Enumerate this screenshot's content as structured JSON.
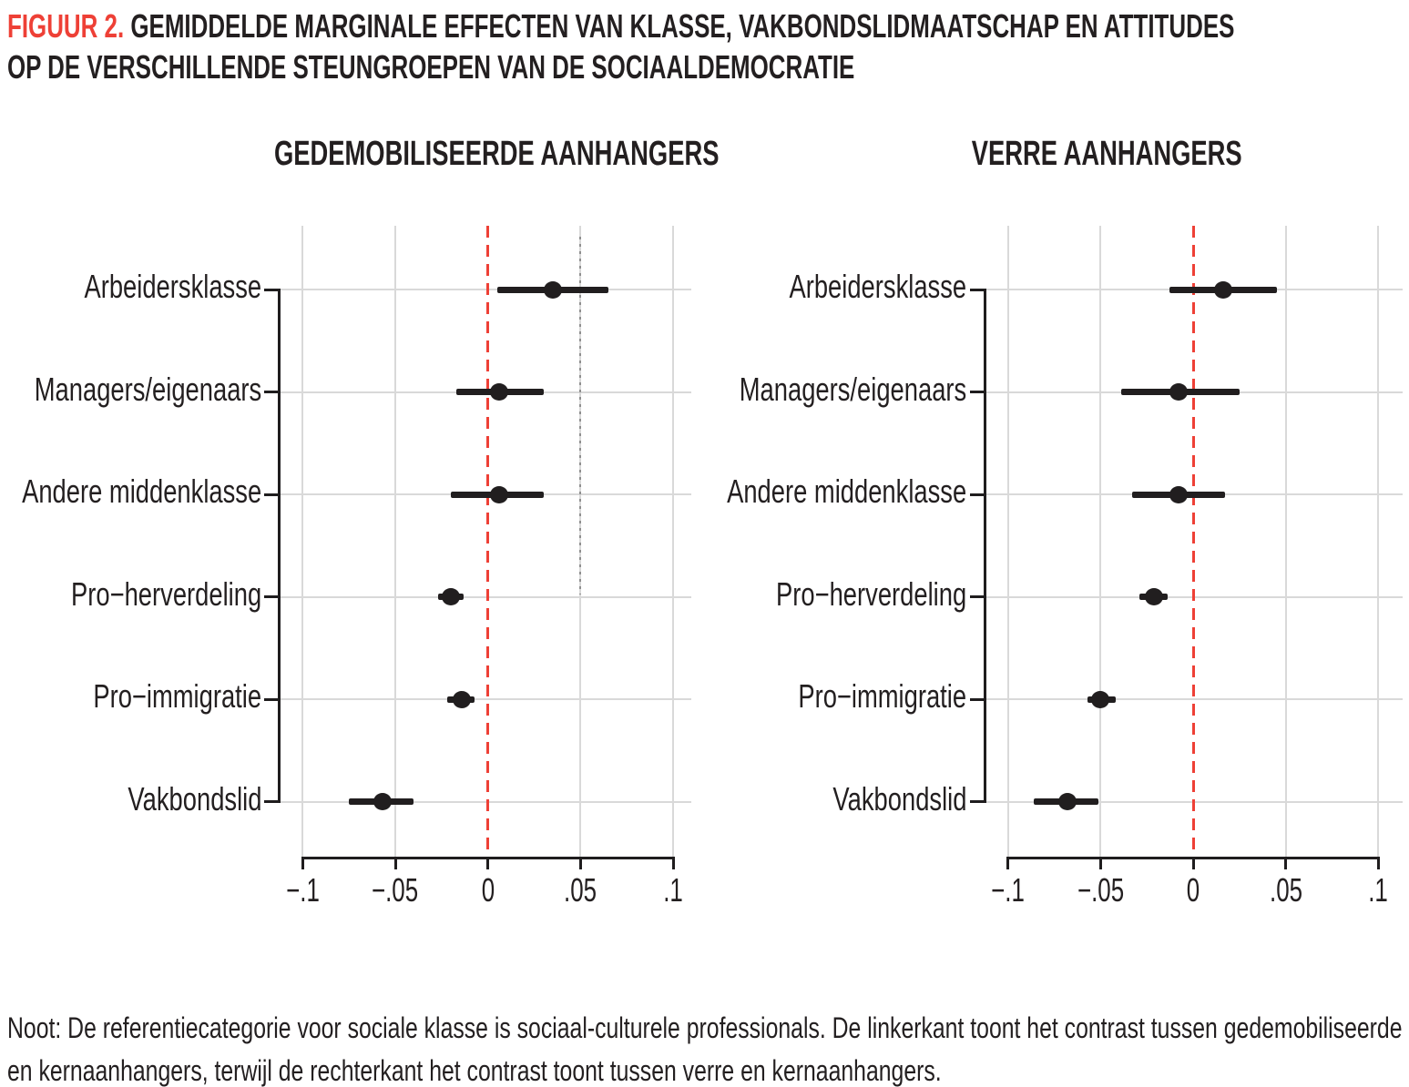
{
  "figure": {
    "label": "FIGUUR 2.",
    "title_line1": " GEMIDDELDE MARGINALE EFFECTEN VAN KLASSE, VAKBONDSLIDMAATSCHAP EN ATTITUDES",
    "title_line2": "OP DE VERSCHILLENDE STEUNGROEPEN VAN DE SOCIAALDEMOCRATIE",
    "label_color": "#ee4036"
  },
  "note": {
    "text": "Noot: De referentiecategorie voor sociale klasse is sociaal-culturele professionals. De linkerkant toont het contrast tussen gedemobiliseerde en kernaanhangers, terwijl de rechterkant het contrast toont tussen verre en kernaanhangers."
  },
  "chart_data": {
    "type": "scatter",
    "subtype": "coefficient-dot-whisker",
    "categories": [
      "Arbeidersklasse",
      "Managers/eigenaars",
      "Andere middenklasse",
      "Pro−herverdeling",
      "Pro−immigratie",
      "Vakbondslid"
    ],
    "x_ticks": [
      -0.1,
      -0.05,
      0,
      0.05,
      0.1
    ],
    "x_tick_labels": [
      "−.1",
      "−.05",
      "0",
      ".05",
      ".1"
    ],
    "xlim": [
      -0.1,
      0.1
    ],
    "grid": "on",
    "zero_line": {
      "x": 0,
      "style": "dashed",
      "color": "#ee4036"
    },
    "colors": {
      "marker": "#211e1f",
      "gridline": "#d9d9d9",
      "axis": "#1f1d1e",
      "dotted_reference": "#8f8f8f"
    },
    "panels": [
      {
        "title": "GEDEMOBILISEERDE AANHANGERS",
        "estimates": [
          0.035,
          0.006,
          0.006,
          -0.02,
          -0.014,
          -0.057
        ],
        "ci_low": [
          0.005,
          -0.017,
          -0.02,
          -0.027,
          -0.022,
          -0.075
        ],
        "ci_high": [
          0.065,
          0.03,
          0.03,
          -0.013,
          -0.007,
          -0.04
        ],
        "dotted_reference_x": 0.05
      },
      {
        "title": "VERRE AANHANGERS",
        "estimates": [
          0.016,
          -0.008,
          -0.008,
          -0.021,
          -0.05,
          -0.068
        ],
        "ci_low": [
          -0.013,
          -0.039,
          -0.033,
          -0.029,
          -0.057,
          -0.086
        ],
        "ci_high": [
          0.045,
          0.025,
          0.017,
          -0.014,
          -0.042,
          -0.051
        ],
        "dotted_reference_x": null
      }
    ]
  }
}
